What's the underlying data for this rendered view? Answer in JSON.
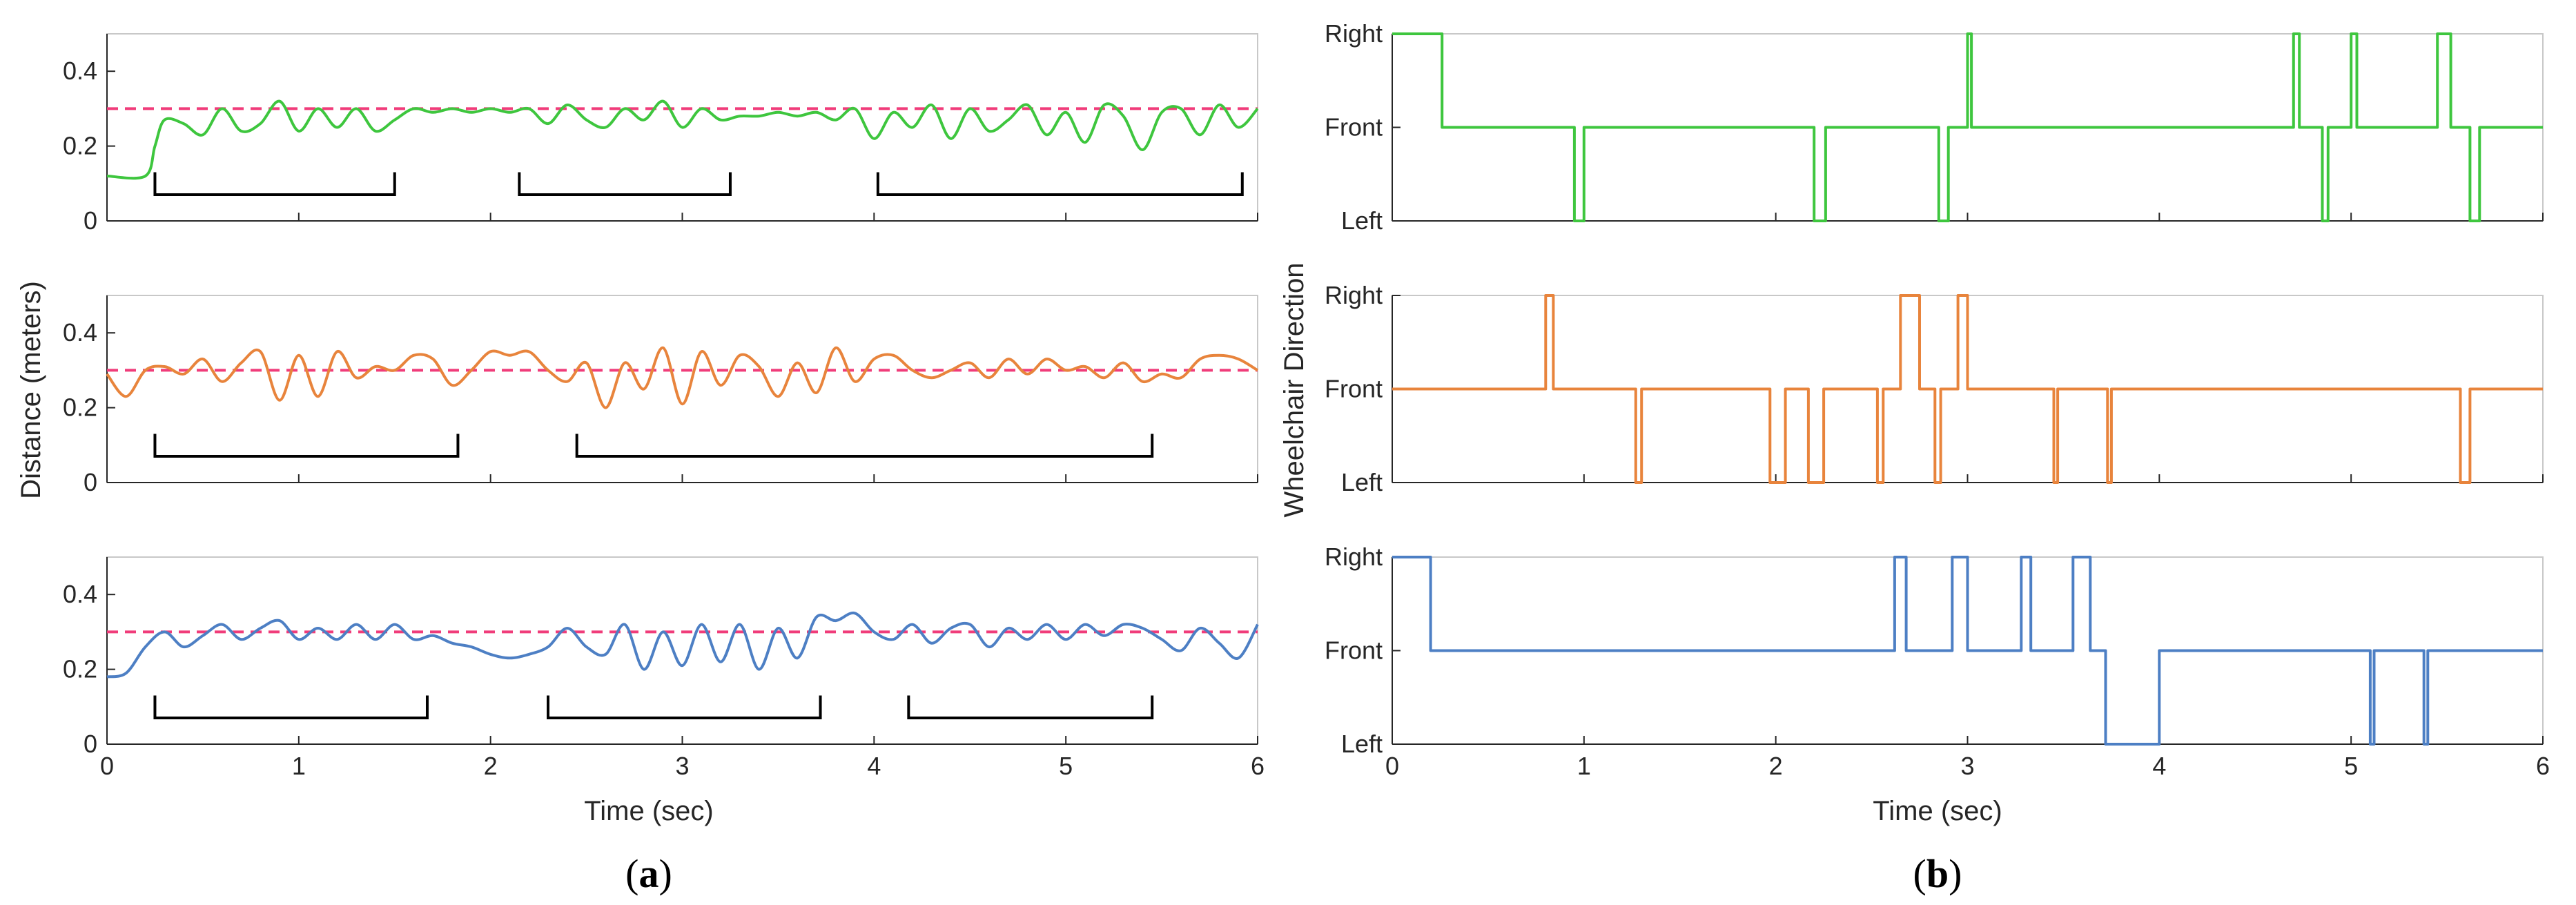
{
  "figure": {
    "left_label_open": "(",
    "left_label_letter": "a",
    "left_label_close": ")",
    "right_label_open": "(",
    "right_label_letter": "b",
    "right_label_close": ")"
  },
  "colors": {
    "green": "#3ec63e",
    "orange": "#e8843c",
    "blue": "#4d7fc4",
    "threshold": "#f03c7a",
    "bracket": "#000000",
    "axis": "#262626",
    "box": "#c8c8c8"
  },
  "chart_data": [
    {
      "type": "line",
      "panel": "a",
      "ylabel": "Distance (meters)",
      "xlabel": "Time (sec)",
      "xlim": [
        0,
        6
      ],
      "xticks": [
        "0",
        "1",
        "2",
        "3",
        "4",
        "5",
        "6"
      ],
      "ylim": [
        0,
        0.5
      ],
      "yticks": [
        "0",
        "0.2",
        "0.4"
      ],
      "threshold": 0.3,
      "subplots": [
        {
          "color": "green",
          "series": [
            {
              "x": [
                0,
                0.2,
                0.25,
                0.3,
                0.4,
                0.5,
                0.6,
                0.7,
                0.8,
                0.9,
                1.0,
                1.1,
                1.2,
                1.3,
                1.4,
                1.5,
                1.6,
                1.7,
                1.8,
                1.9,
                2.0,
                2.1,
                2.2,
                2.3,
                2.4,
                2.5,
                2.6,
                2.7,
                2.8,
                2.9,
                3.0,
                3.1,
                3.2,
                3.3,
                3.4,
                3.5,
                3.6,
                3.7,
                3.8,
                3.9,
                4.0,
                4.1,
                4.2,
                4.3,
                4.4,
                4.5,
                4.6,
                4.7,
                4.8,
                4.9,
                5.0,
                5.1,
                5.2,
                5.3,
                5.4,
                5.5,
                5.6,
                5.7,
                5.8,
                5.9,
                6.0
              ],
              "y": [
                0.12,
                0.12,
                0.2,
                0.27,
                0.26,
                0.23,
                0.3,
                0.24,
                0.26,
                0.32,
                0.24,
                0.3,
                0.25,
                0.3,
                0.24,
                0.27,
                0.3,
                0.29,
                0.3,
                0.29,
                0.3,
                0.29,
                0.3,
                0.26,
                0.31,
                0.27,
                0.25,
                0.3,
                0.27,
                0.32,
                0.25,
                0.3,
                0.27,
                0.28,
                0.28,
                0.29,
                0.28,
                0.29,
                0.27,
                0.3,
                0.22,
                0.29,
                0.25,
                0.31,
                0.22,
                0.3,
                0.24,
                0.27,
                0.31,
                0.23,
                0.29,
                0.21,
                0.31,
                0.28,
                0.19,
                0.29,
                0.3,
                0.23,
                0.31,
                0.25,
                0.3
              ]
            }
          ],
          "brackets": [
            [
              0.25,
              1.5
            ],
            [
              2.15,
              3.25
            ],
            [
              4.02,
              5.92
            ]
          ]
        },
        {
          "color": "orange",
          "series": [
            {
              "x": [
                0,
                0.1,
                0.2,
                0.3,
                0.4,
                0.5,
                0.6,
                0.7,
                0.8,
                0.9,
                1.0,
                1.1,
                1.2,
                1.3,
                1.4,
                1.5,
                1.6,
                1.7,
                1.8,
                1.9,
                2.0,
                2.1,
                2.2,
                2.3,
                2.4,
                2.5,
                2.6,
                2.7,
                2.8,
                2.9,
                3.0,
                3.1,
                3.2,
                3.3,
                3.4,
                3.5,
                3.6,
                3.7,
                3.8,
                3.9,
                4.0,
                4.1,
                4.2,
                4.3,
                4.4,
                4.5,
                4.6,
                4.7,
                4.8,
                4.9,
                5.0,
                5.1,
                5.2,
                5.3,
                5.4,
                5.5,
                5.6,
                5.7,
                5.8,
                5.9,
                6.0
              ],
              "y": [
                0.29,
                0.23,
                0.3,
                0.31,
                0.29,
                0.33,
                0.27,
                0.32,
                0.35,
                0.22,
                0.34,
                0.23,
                0.35,
                0.28,
                0.31,
                0.3,
                0.34,
                0.33,
                0.26,
                0.3,
                0.35,
                0.34,
                0.35,
                0.3,
                0.27,
                0.32,
                0.2,
                0.32,
                0.25,
                0.36,
                0.21,
                0.35,
                0.26,
                0.34,
                0.31,
                0.23,
                0.32,
                0.24,
                0.36,
                0.27,
                0.33,
                0.34,
                0.3,
                0.28,
                0.3,
                0.32,
                0.28,
                0.33,
                0.29,
                0.33,
                0.3,
                0.31,
                0.28,
                0.32,
                0.27,
                0.29,
                0.28,
                0.33,
                0.34,
                0.33,
                0.3
              ]
            }
          ],
          "brackets": [
            [
              0.25,
              1.83
            ],
            [
              2.45,
              5.45
            ]
          ]
        },
        {
          "color": "blue",
          "series": [
            {
              "x": [
                0,
                0.1,
                0.2,
                0.3,
                0.4,
                0.5,
                0.6,
                0.7,
                0.8,
                0.9,
                1.0,
                1.1,
                1.2,
                1.3,
                1.4,
                1.5,
                1.6,
                1.7,
                1.8,
                1.9,
                2.0,
                2.1,
                2.2,
                2.3,
                2.4,
                2.5,
                2.6,
                2.7,
                2.8,
                2.9,
                3.0,
                3.1,
                3.2,
                3.3,
                3.4,
                3.5,
                3.6,
                3.7,
                3.8,
                3.9,
                4.0,
                4.1,
                4.2,
                4.3,
                4.4,
                4.5,
                4.6,
                4.7,
                4.8,
                4.9,
                5.0,
                5.1,
                5.2,
                5.3,
                5.4,
                5.5,
                5.6,
                5.7,
                5.8,
                5.9,
                6.0
              ],
              "y": [
                0.18,
                0.19,
                0.26,
                0.3,
                0.26,
                0.29,
                0.32,
                0.28,
                0.31,
                0.33,
                0.28,
                0.31,
                0.28,
                0.32,
                0.28,
                0.32,
                0.28,
                0.29,
                0.27,
                0.26,
                0.24,
                0.23,
                0.24,
                0.26,
                0.31,
                0.26,
                0.24,
                0.32,
                0.2,
                0.3,
                0.21,
                0.32,
                0.22,
                0.32,
                0.2,
                0.31,
                0.23,
                0.34,
                0.33,
                0.35,
                0.3,
                0.28,
                0.32,
                0.27,
                0.31,
                0.32,
                0.26,
                0.31,
                0.28,
                0.32,
                0.28,
                0.32,
                0.29,
                0.32,
                0.31,
                0.28,
                0.25,
                0.31,
                0.27,
                0.23,
                0.32
              ]
            }
          ],
          "brackets": [
            [
              0.25,
              1.67
            ],
            [
              2.3,
              3.72
            ],
            [
              4.18,
              5.45
            ]
          ]
        }
      ]
    },
    {
      "type": "line",
      "panel": "b",
      "ylabel": "Wheelchair Direction",
      "xlabel": "Time (sec)",
      "xlim": [
        0,
        6
      ],
      "xticks": [
        "0",
        "1",
        "2",
        "3",
        "4",
        "5",
        "6"
      ],
      "ylevels": [
        "Left",
        "Front",
        "Right"
      ],
      "subplots": [
        {
          "color": "green",
          "series": [
            {
              "x": [
                0,
                0.26,
                0.26,
                0.95,
                0.95,
                1.0,
                1.0,
                2.2,
                2.2,
                2.26,
                2.26,
                2.85,
                2.85,
                2.9,
                2.9,
                3.0,
                3.0,
                3.02,
                3.02,
                4.7,
                4.7,
                4.73,
                4.73,
                4.85,
                4.85,
                4.88,
                4.88,
                5.0,
                5.0,
                5.03,
                5.03,
                5.45,
                5.45,
                5.52,
                5.52,
                5.62,
                5.62,
                5.67,
                5.67,
                6.0
              ],
              "y": [
                2,
                2,
                1,
                1,
                0,
                0,
                1,
                1,
                0,
                0,
                1,
                1,
                0,
                0,
                1,
                1,
                2,
                2,
                1,
                1,
                2,
                2,
                1,
                1,
                0,
                0,
                1,
                1,
                2,
                2,
                1,
                1,
                2,
                2,
                1,
                1,
                0,
                0,
                1,
                1
              ]
            }
          ]
        },
        {
          "color": "orange",
          "series": [
            {
              "x": [
                0,
                0.8,
                0.8,
                0.84,
                0.84,
                1.27,
                1.27,
                1.3,
                1.3,
                1.97,
                1.97,
                2.05,
                2.05,
                2.07,
                2.07,
                2.17,
                2.17,
                2.19,
                2.19,
                2.25,
                2.25,
                2.53,
                2.53,
                2.56,
                2.56,
                2.65,
                2.65,
                2.72,
                2.72,
                2.75,
                2.75,
                2.83,
                2.83,
                2.86,
                2.86,
                2.95,
                2.95,
                3.0,
                3.0,
                3.45,
                3.45,
                3.47,
                3.47,
                3.73,
                3.73,
                3.75,
                3.75,
                5.57,
                5.57,
                5.62,
                5.62,
                6.0
              ],
              "y": [
                1,
                1,
                2,
                2,
                1,
                1,
                0,
                0,
                1,
                1,
                0,
                0,
                1,
                1,
                1,
                1,
                0,
                0,
                0,
                0,
                1,
                1,
                0,
                0,
                1,
                1,
                2,
                2,
                2,
                2,
                1,
                1,
                0,
                0,
                1,
                1,
                2,
                2,
                1,
                1,
                0,
                0,
                1,
                1,
                0,
                0,
                1,
                1,
                0,
                0,
                1,
                1
              ]
            }
          ]
        },
        {
          "color": "blue",
          "series": [
            {
              "x": [
                0,
                0.2,
                0.2,
                2.62,
                2.62,
                2.68,
                2.68,
                2.92,
                2.92,
                2.98,
                2.98,
                3.0,
                3.0,
                3.28,
                3.28,
                3.33,
                3.33,
                3.55,
                3.55,
                3.64,
                3.64,
                3.72,
                3.72,
                4.0,
                4.0,
                5.1,
                5.1,
                5.12,
                5.12,
                5.38,
                5.38,
                5.4,
                5.4,
                6.0
              ],
              "y": [
                2,
                2,
                1,
                1,
                2,
                2,
                1,
                1,
                2,
                2,
                2,
                2,
                1,
                1,
                2,
                2,
                1,
                1,
                2,
                2,
                1,
                1,
                0,
                0,
                1,
                1,
                0,
                0,
                1,
                1,
                0,
                0,
                1,
                1
              ]
            }
          ]
        }
      ]
    }
  ]
}
